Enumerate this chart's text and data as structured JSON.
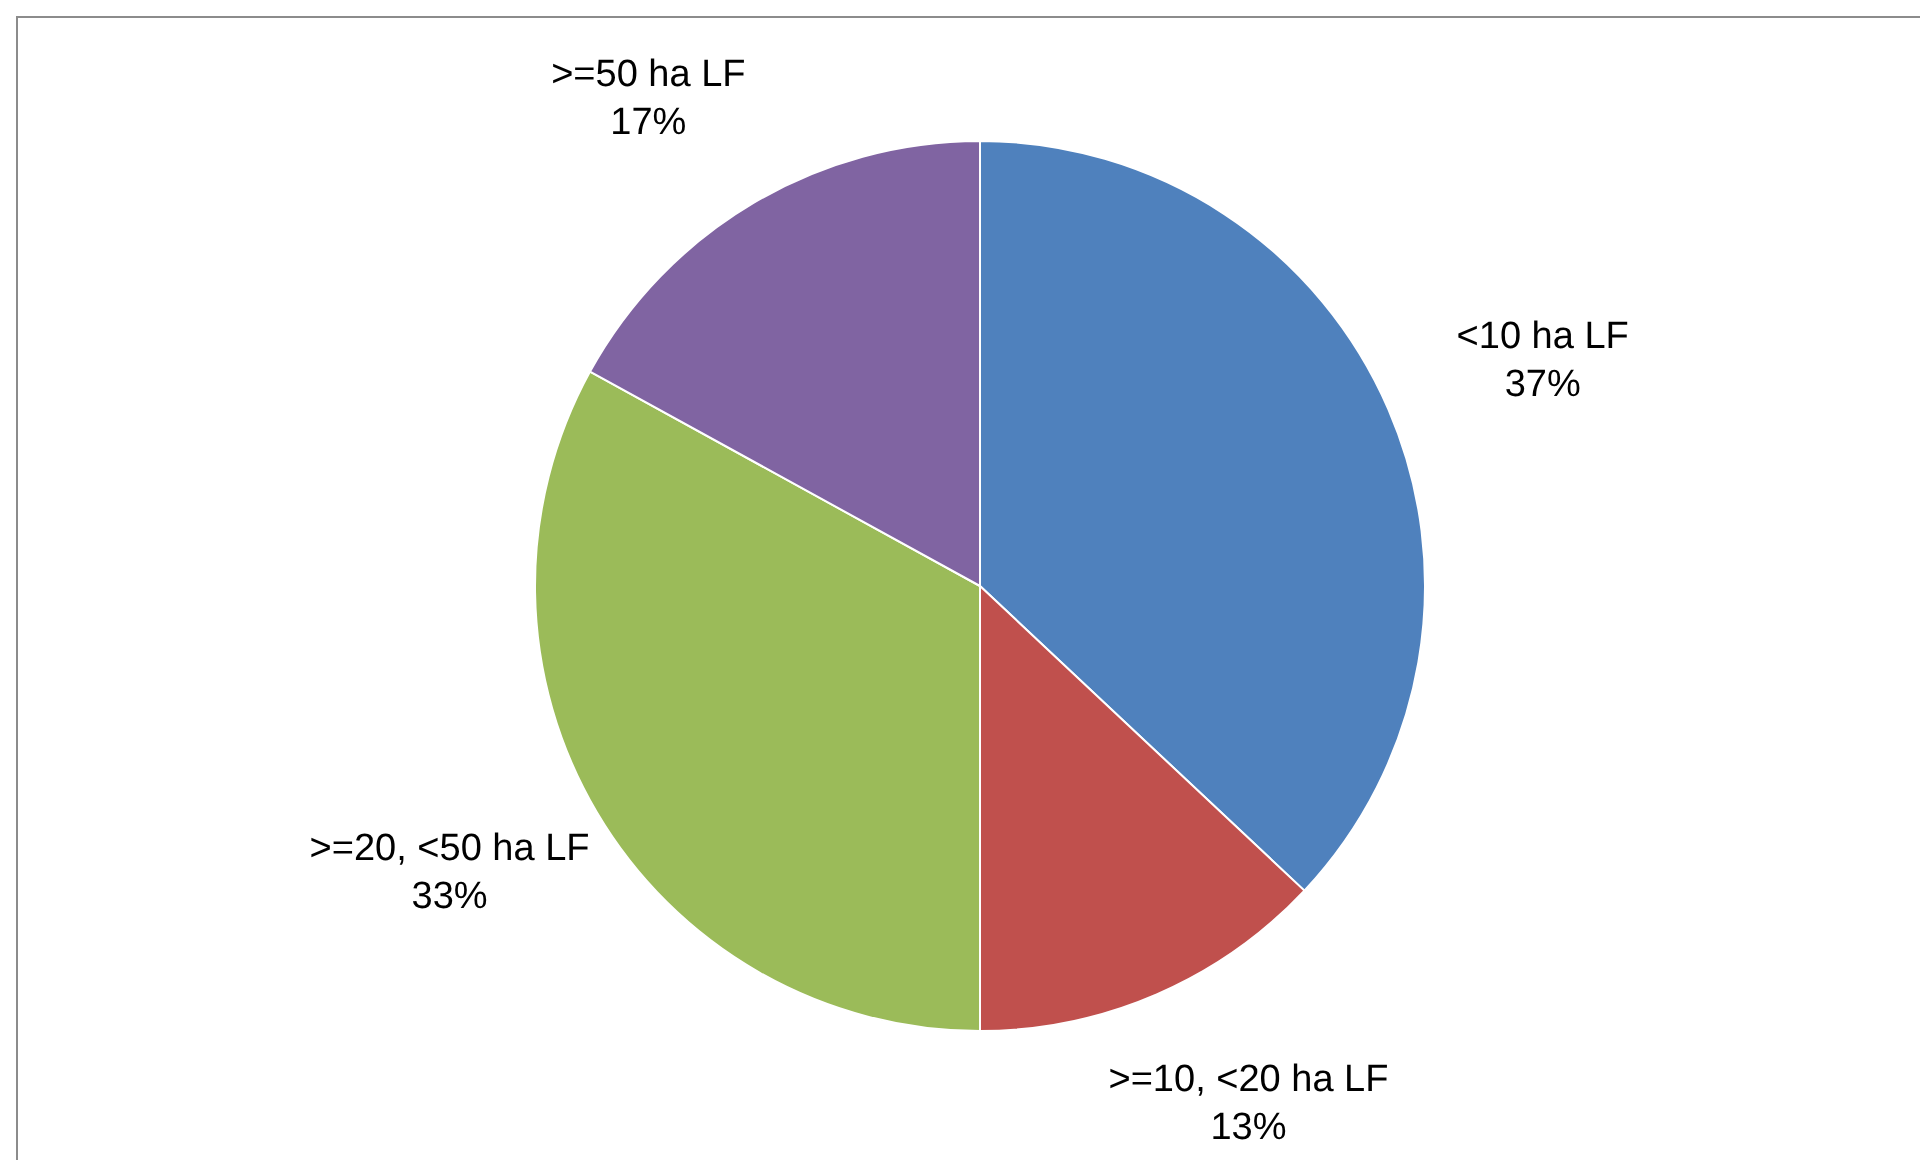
{
  "chart_data": {
    "type": "pie",
    "categories": [
      "<10 ha LF",
      ">=10, <20 ha LF",
      ">=20, <50 ha LF",
      ">=50 ha LF"
    ],
    "values": [
      37,
      13,
      33,
      17
    ],
    "value_labels": [
      "37%",
      "13%",
      "33%",
      "17%"
    ],
    "colors": [
      "#4f81bd",
      "#c0504d",
      "#9bbb59",
      "#8064a2"
    ],
    "legend": false
  }
}
